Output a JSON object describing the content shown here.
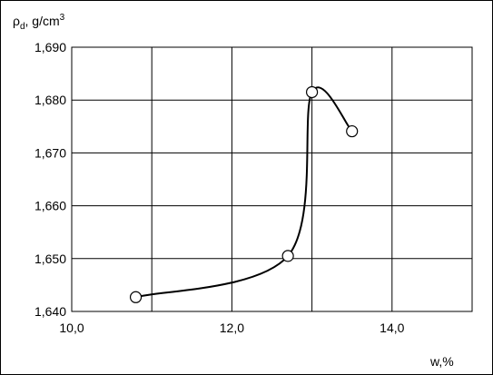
{
  "chart_data": {
    "type": "line",
    "ylabel": {
      "main": "ρ",
      "sub": "d",
      "unit": ", g/cm",
      "sup": "3"
    },
    "xlabel": "w,%",
    "xlim": [
      10.0,
      15.0
    ],
    "ylim": [
      1.64,
      1.69
    ],
    "x_ticks": [
      10.0,
      12.0,
      14.0
    ],
    "x_tick_labels": [
      "10,0",
      "12,0",
      "14,0"
    ],
    "y_ticks": [
      1.64,
      1.65,
      1.66,
      1.67,
      1.68,
      1.69
    ],
    "y_tick_labels": [
      "1,640",
      "1,650",
      "1,660",
      "1,670",
      "1,680",
      "1,690"
    ],
    "x_gridlines": [
      10.0,
      11.0,
      12.0,
      13.0,
      14.0,
      15.0
    ],
    "grid": true,
    "legend": "none",
    "series": [
      {
        "x": [
          10.8,
          12.7,
          13.0,
          13.5
        ],
        "y": [
          1.6427,
          1.6505,
          1.6815,
          1.6741
        ],
        "marker": "circle-open",
        "smooth": true
      }
    ],
    "colors": {
      "line": "#000000",
      "marker_fill": "#ffffff",
      "grid": "#000000"
    }
  }
}
